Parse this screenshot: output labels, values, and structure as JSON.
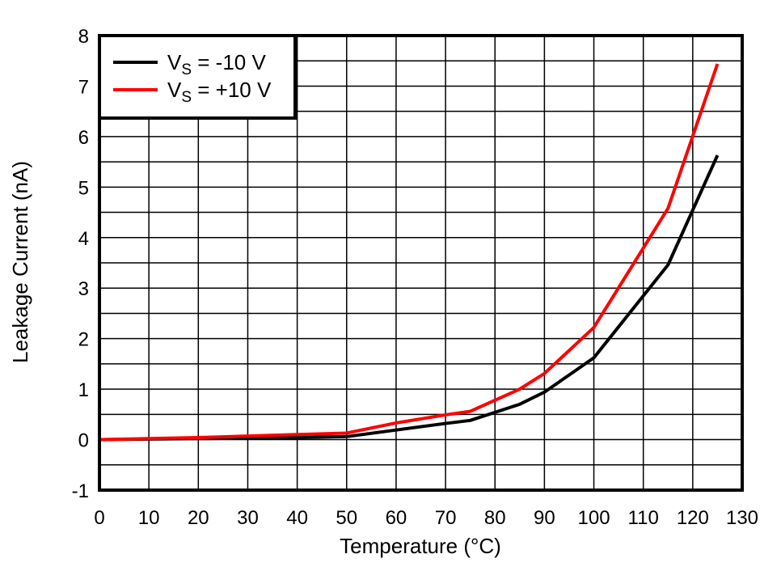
{
  "chart_data": {
    "type": "line",
    "title": "",
    "xlabel": "Temperature (°C)",
    "ylabel": "Leakage Current (nA)",
    "xlim": [
      0,
      130
    ],
    "ylim": [
      -1,
      8
    ],
    "x_ticks": [
      0,
      10,
      20,
      30,
      40,
      50,
      60,
      70,
      80,
      90,
      100,
      110,
      120,
      130
    ],
    "y_ticks": [
      -1,
      0,
      1,
      2,
      3,
      4,
      5,
      6,
      7,
      8
    ],
    "grid": true,
    "grid_minor_y": 0.5,
    "legend_position": "upper left",
    "series": [
      {
        "name": "VS = -10 V",
        "label_main": "V",
        "label_sub": "S",
        "label_rest": " = -10 V",
        "color": "#000000",
        "x": [
          0,
          10,
          20,
          30,
          40,
          50,
          60,
          70,
          75,
          85,
          90,
          100,
          115,
          125
        ],
        "y": [
          0.0,
          0.01,
          0.02,
          0.03,
          0.04,
          0.06,
          0.19,
          0.32,
          0.38,
          0.7,
          0.94,
          1.62,
          3.46,
          5.63
        ]
      },
      {
        "name": "VS = +10 V",
        "label_main": "V",
        "label_sub": "S",
        "label_rest": " = +10 V",
        "color": "#ff0000",
        "x": [
          0,
          10,
          20,
          30,
          40,
          50,
          60,
          70,
          75,
          85,
          90,
          100,
          115,
          125
        ],
        "y": [
          0.0,
          0.02,
          0.04,
          0.07,
          0.1,
          0.13,
          0.33,
          0.49,
          0.56,
          1.0,
          1.31,
          2.22,
          4.58,
          7.44
        ]
      }
    ]
  }
}
